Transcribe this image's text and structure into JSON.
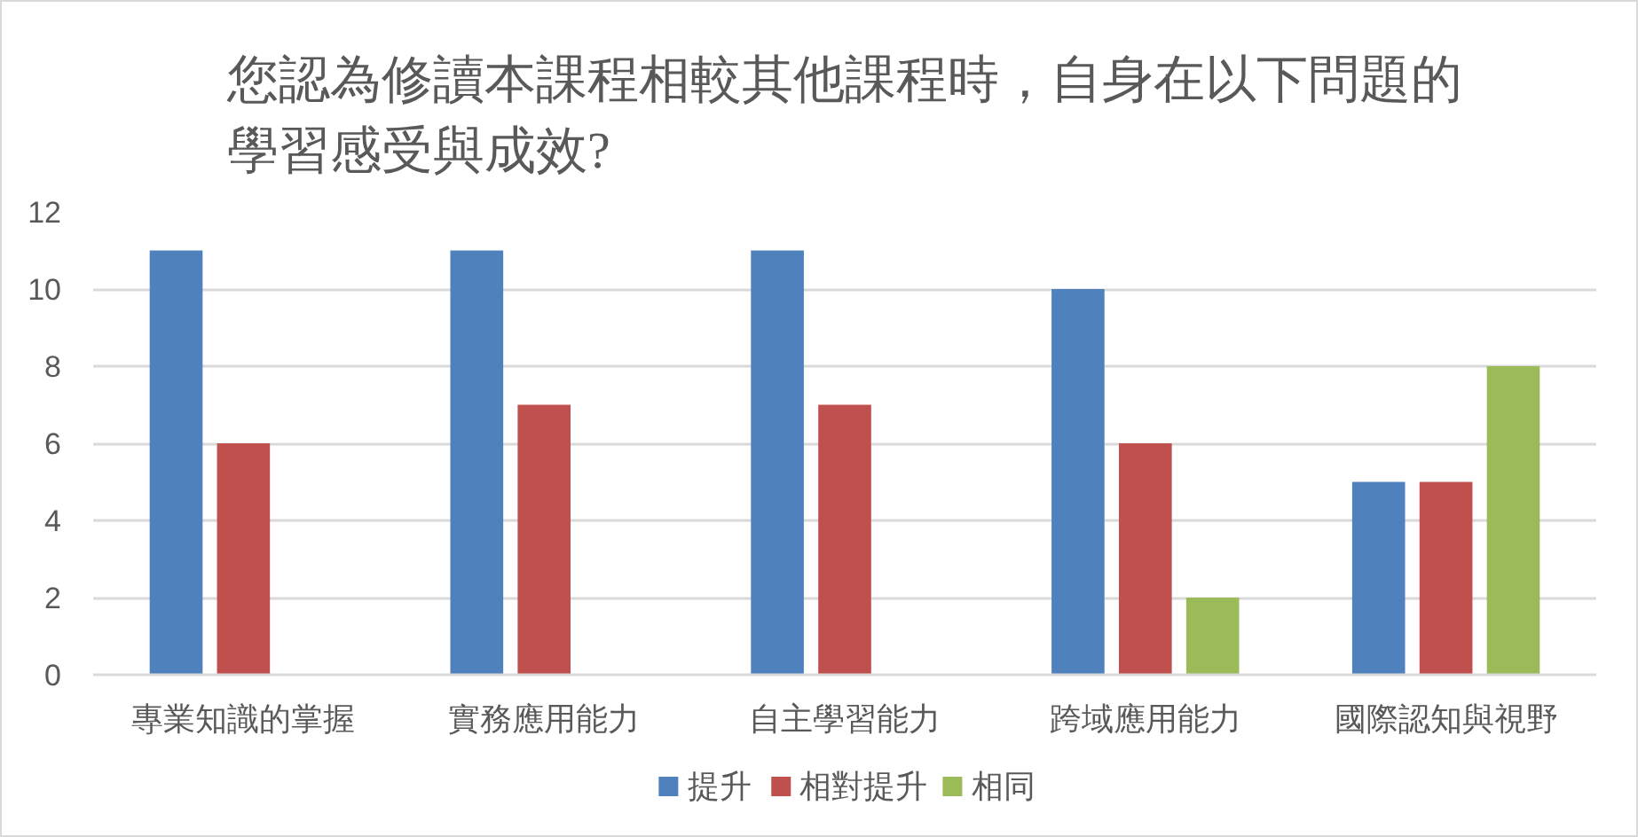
{
  "chart_data": {
    "type": "bar",
    "title": "您認為修讀本課程相較其他課程時，自身在以下問題的學習感受與成效?",
    "categories": [
      "專業知識的掌握",
      "實務應用能力",
      "自主學習能力",
      "跨域應用能力",
      "國際認知與視野"
    ],
    "series": [
      {
        "name": "提升",
        "color": "#4f81bd",
        "values": [
          11,
          11,
          11,
          10,
          5
        ]
      },
      {
        "name": "相對提升",
        "color": "#c0504d",
        "values": [
          6,
          7,
          7,
          6,
          5
        ]
      },
      {
        "name": "相同",
        "color": "#9bbb59",
        "values": [
          0,
          0,
          0,
          2,
          8
        ]
      }
    ],
    "ylim": [
      0,
      12
    ],
    "yticks": [
      0,
      2,
      4,
      6,
      8,
      10,
      12
    ],
    "grid": "y",
    "legend": "bottom"
  }
}
